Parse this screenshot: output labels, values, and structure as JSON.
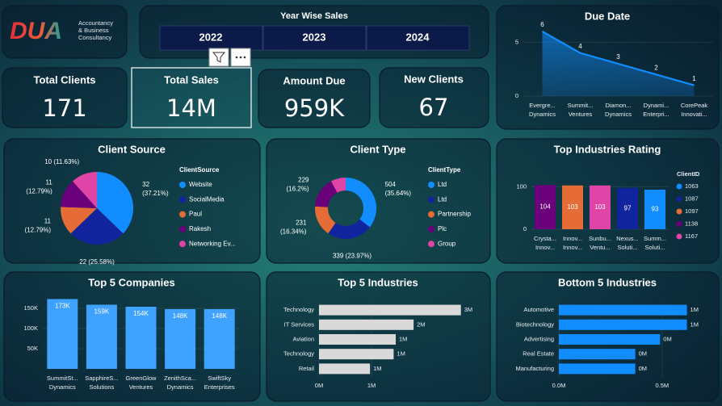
{
  "logo": {
    "mark": "DUA",
    "lines": [
      "Accountancy",
      "& Business",
      "Consultancy"
    ]
  },
  "year_slicer": {
    "title": "Year Wise Sales",
    "items": [
      "2022",
      "2023",
      "2024"
    ]
  },
  "kpis": [
    {
      "label": "Total Clients",
      "value": "171"
    },
    {
      "label": "Total Sales",
      "value": "14M"
    },
    {
      "label": "Amount Due",
      "value": "959K"
    },
    {
      "label": "New Clients",
      "value": "67"
    }
  ],
  "chart_data": [
    {
      "type": "area",
      "title": "Due Date",
      "categories": [
        [
          "Evergre...",
          "Dynamics"
        ],
        [
          "Summit...",
          "Ventures"
        ],
        [
          "Diamon...",
          "Dynamics"
        ],
        [
          "Dynami...",
          "Enterpri..."
        ],
        [
          "CorePeak",
          "Innovati..."
        ]
      ],
      "values": [
        6,
        4,
        3,
        2,
        1
      ],
      "color": "#118DFF",
      "ylim": [
        0,
        6.3
      ],
      "yticks": [
        0,
        5
      ]
    },
    {
      "type": "pie",
      "title": "Client Source",
      "legend_title": "ClientSource",
      "labels": [
        "Website",
        "SocialMedia",
        "Paul",
        "Rakesh",
        "Networking Ev..."
      ],
      "values": [
        32,
        22,
        11,
        11,
        10
      ],
      "value_labels": [
        [
          "32",
          "(37.21%)"
        ],
        [
          "22 (25.58%)"
        ],
        [
          "11",
          "(12.79%)"
        ],
        [
          "11",
          "(12.79%)"
        ],
        [
          "10 (11.63%)"
        ]
      ],
      "colors": [
        "#118DFF",
        "#12239E",
        "#E66C37",
        "#6B007B",
        "#E044A7"
      ]
    },
    {
      "type": "donut",
      "title": "Client Type",
      "legend_title": "ClientType",
      "labels": [
        "Ltd",
        "Ltd",
        "Partnership",
        "Plc",
        "Group"
      ],
      "values": [
        504,
        339,
        231,
        229,
        111
      ],
      "value_labels": [
        [
          "504",
          "(35.64%)"
        ],
        [
          "339 (23.97%)"
        ],
        [
          "231",
          "(16.34%)"
        ],
        [
          "229",
          "(16.2%)"
        ],
        null
      ],
      "colors": [
        "#118DFF",
        "#12239E",
        "#E66C37",
        "#6B007B",
        "#E044A7"
      ]
    },
    {
      "type": "bar",
      "title": "Top Industries Rating",
      "legend_title": "ClientID",
      "categories": [
        [
          "Crysta...",
          "Innov..."
        ],
        [
          "Innov...",
          "Innov..."
        ],
        [
          "Sunbu...",
          "Ventu..."
        ],
        [
          "Nexus...",
          "Soluti..."
        ],
        [
          "Summ...",
          "Soluti..."
        ]
      ],
      "series": [
        {
          "name": "1063",
          "color": "#118DFF",
          "values": [
            null,
            null,
            null,
            null,
            93
          ]
        },
        {
          "name": "1087",
          "color": "#12239E",
          "values": [
            null,
            null,
            null,
            97,
            null
          ]
        },
        {
          "name": "1097",
          "color": "#E66C37",
          "values": [
            null,
            103,
            null,
            null,
            null
          ]
        },
        {
          "name": "1138",
          "color": "#6B007B",
          "values": [
            104,
            null,
            null,
            null,
            null
          ]
        },
        {
          "name": "1167",
          "color": "#E044A7",
          "values": [
            null,
            null,
            103,
            null,
            null
          ]
        }
      ],
      "ylim": [
        0,
        112
      ],
      "yticks": [
        0,
        100
      ]
    },
    {
      "type": "bar",
      "title": "Top 5 Companies",
      "categories": [
        [
          "SummitSt...",
          "Dynamics"
        ],
        [
          "SapphireS...",
          "Solutions"
        ],
        [
          "GreenGlow",
          "Ventures"
        ],
        [
          "ZenithSca...",
          "Dynamics"
        ],
        [
          "SwiftSky",
          "Enterprises"
        ]
      ],
      "values": [
        173000,
        159000,
        154000,
        148000,
        148000
      ],
      "value_labels": [
        "173K",
        "159K",
        "154K",
        "148K",
        "148K"
      ],
      "color": "#3FA2FF",
      "ylim": [
        0,
        180000
      ],
      "yticks": [
        {
          "value": 50000,
          "label": "50K"
        },
        {
          "value": 100000,
          "label": "100K"
        },
        {
          "value": 150000,
          "label": "150K"
        }
      ]
    },
    {
      "type": "hbar",
      "title": "Top 5 Industries",
      "categories": [
        "Technology",
        "IT Services",
        "Aviation",
        "Technology",
        "Retail"
      ],
      "values": [
        2700000,
        1800000,
        1460000,
        1420000,
        970000
      ],
      "value_labels": [
        "3M",
        "2M",
        "1M",
        "1M",
        "1M"
      ],
      "color": "#D9D9D9",
      "xlim": [
        0,
        3150000
      ],
      "xticks": [
        {
          "value": 0,
          "label": "0M"
        },
        {
          "value": 1000000,
          "label": "1M"
        }
      ]
    },
    {
      "type": "hbar",
      "title": "Bottom 5 Industries",
      "categories": [
        "Automotive",
        "Biotechnology",
        "Advertising",
        "Real Estate",
        "Manufacturing"
      ],
      "values": [
        620000,
        620000,
        490000,
        370000,
        370000
      ],
      "value_labels": [
        "1M",
        "1M",
        "0M",
        "0M",
        "0M"
      ],
      "color": "#118DFF",
      "xlim": [
        0,
        700000
      ],
      "xticks": [
        {
          "value": 0,
          "label": "0.0M"
        },
        {
          "value": 500000,
          "label": "0.5M"
        }
      ]
    }
  ]
}
